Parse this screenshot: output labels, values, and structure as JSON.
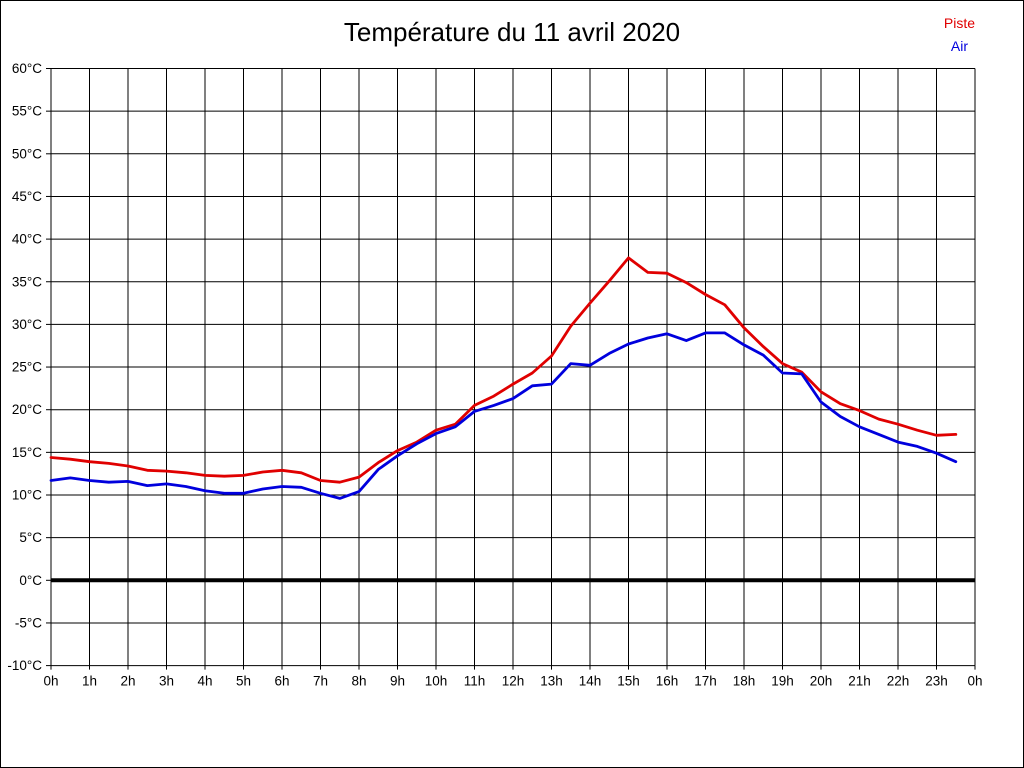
{
  "title": "Température du 11 avril 2020",
  "legend": {
    "piste_label": "Piste",
    "air_label": "Air"
  },
  "colors": {
    "piste": "#e00000",
    "air": "#0000dd",
    "grid": "#000000",
    "zero_line": "#000000",
    "background": "#ffffff",
    "title_text": "#000000"
  },
  "chart_data": {
    "type": "line",
    "title": "Température du 11 avril 2020",
    "xlabel": "",
    "ylabel": "",
    "x_unit": "hours",
    "xlim": [
      0,
      24
    ],
    "ylim": [
      -10,
      60
    ],
    "grid": true,
    "zero_line_emphasis": true,
    "legend_position": "top-right",
    "x_tick_hours": [
      0,
      1,
      2,
      3,
      4,
      5,
      6,
      7,
      8,
      9,
      10,
      11,
      12,
      13,
      14,
      15,
      16,
      17,
      18,
      19,
      20,
      21,
      22,
      23,
      24
    ],
    "x_tick_labels": [
      "0h",
      "1h",
      "2h",
      "3h",
      "4h",
      "5h",
      "6h",
      "7h",
      "8h",
      "9h",
      "10h",
      "11h",
      "12h",
      "13h",
      "14h",
      "15h",
      "16h",
      "17h",
      "18h",
      "19h",
      "20h",
      "21h",
      "22h",
      "23h",
      "0h"
    ],
    "y_ticks": [
      60,
      55,
      50,
      45,
      40,
      35,
      30,
      25,
      20,
      15,
      10,
      5,
      0,
      -5,
      -10
    ],
    "y_tick_labels": [
      "60°C",
      "55°C",
      "50°C",
      "45°C",
      "40°C",
      "35°C",
      "30°C",
      "25°C",
      "20°C",
      "15°C",
      "10°C",
      "5°C",
      "0°C",
      "-5°C",
      "-10°C"
    ],
    "x": [
      0,
      0.5,
      1,
      1.5,
      2,
      2.5,
      3,
      3.5,
      4,
      4.5,
      5,
      5.5,
      6,
      6.5,
      7,
      7.5,
      8,
      8.5,
      9,
      9.5,
      10,
      10.5,
      11,
      11.5,
      12,
      12.5,
      13,
      13.5,
      14,
      14.5,
      15,
      15.5,
      16,
      16.5,
      17,
      17.5,
      18,
      18.5,
      19,
      19.5,
      20,
      20.5,
      21,
      21.5,
      22,
      22.5,
      23,
      23.5
    ],
    "series": [
      {
        "name": "Piste",
        "color": "#e00000",
        "values": [
          14.4,
          14.2,
          13.9,
          13.7,
          13.4,
          12.9,
          12.8,
          12.6,
          12.3,
          12.2,
          12.3,
          12.7,
          12.9,
          12.6,
          11.7,
          11.5,
          12.1,
          13.8,
          15.2,
          16.2,
          17.6,
          18.3,
          20.5,
          21.6,
          23.0,
          24.3,
          26.3,
          29.8,
          32.5,
          35.1,
          37.8,
          36.1,
          36.0,
          34.9,
          33.5,
          32.3,
          29.6,
          27.4,
          25.4,
          24.4,
          22.1,
          20.7,
          19.9,
          18.9,
          18.3,
          17.6,
          17.0,
          17.1
        ]
      },
      {
        "name": "Air",
        "color": "#0000dd",
        "values": [
          11.7,
          12.0,
          11.7,
          11.5,
          11.6,
          11.1,
          11.3,
          11.0,
          10.5,
          10.2,
          10.2,
          10.7,
          11.0,
          10.9,
          10.2,
          9.6,
          10.4,
          13.0,
          14.6,
          16.0,
          17.2,
          18.0,
          19.8,
          20.5,
          21.3,
          22.8,
          23.0,
          25.4,
          25.2,
          26.6,
          27.7,
          28.4,
          28.9,
          28.1,
          29.0,
          29.0,
          27.6,
          26.4,
          24.3,
          24.2,
          20.9,
          19.2,
          18.0,
          17.1,
          16.2,
          15.7,
          14.9,
          13.9
        ]
      }
    ]
  }
}
